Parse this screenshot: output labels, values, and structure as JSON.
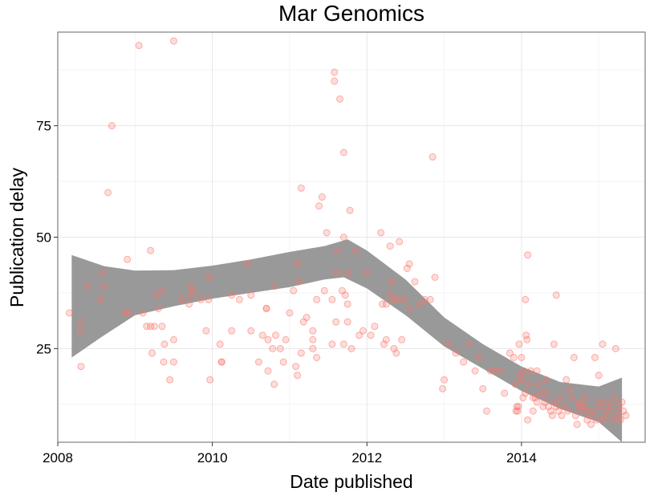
{
  "chart_data": {
    "type": "scatter",
    "title": "Mar Genomics",
    "xlabel": "Date published",
    "ylabel": "Publication delay",
    "xlim": [
      2008.0,
      2015.6
    ],
    "ylim": [
      4,
      96
    ],
    "x_ticks": [
      2008,
      2010,
      2012,
      2014
    ],
    "x_tick_labels": [
      "2008",
      "2010",
      "2012",
      "2014"
    ],
    "y_ticks": [
      25,
      50,
      75
    ],
    "y_tick_labels": [
      "25",
      "50",
      "75"
    ],
    "grid": true,
    "legend": "none",
    "point_color": "#f8766d",
    "band_color": "#999999",
    "band_upper": [
      [
        2008.18,
        46
      ],
      [
        2008.6,
        43.5
      ],
      [
        2009.0,
        42.5
      ],
      [
        2009.5,
        42.6
      ],
      [
        2010.0,
        43.6
      ],
      [
        2010.5,
        45
      ],
      [
        2011.0,
        46.7
      ],
      [
        2011.45,
        48
      ],
      [
        2011.75,
        49.5
      ],
      [
        2012.0,
        47
      ],
      [
        2012.5,
        40.5
      ],
      [
        2013.0,
        32
      ],
      [
        2013.5,
        26
      ],
      [
        2014.0,
        21
      ],
      [
        2014.5,
        17.5
      ],
      [
        2015.0,
        16.5
      ],
      [
        2015.3,
        18.5
      ]
    ],
    "band_lower": [
      [
        2008.18,
        23
      ],
      [
        2008.6,
        28
      ],
      [
        2009.0,
        32.5
      ],
      [
        2009.5,
        34.5
      ],
      [
        2010.0,
        36.2
      ],
      [
        2010.5,
        37.5
      ],
      [
        2011.0,
        38.8
      ],
      [
        2011.45,
        40.5
      ],
      [
        2011.7,
        41
      ],
      [
        2012.0,
        38.5
      ],
      [
        2012.5,
        32.5
      ],
      [
        2013.0,
        25.5
      ],
      [
        2013.5,
        20.5
      ],
      [
        2014.0,
        15.5
      ],
      [
        2014.5,
        11.5
      ],
      [
        2015.0,
        8.5
      ],
      [
        2015.3,
        4
      ]
    ],
    "points": [
      [
        2008.15,
        33
      ],
      [
        2008.3,
        31
      ],
      [
        2008.3,
        29
      ],
      [
        2008.3,
        21
      ],
      [
        2008.38,
        39
      ],
      [
        2008.55,
        36
      ],
      [
        2008.57,
        42
      ],
      [
        2008.6,
        39
      ],
      [
        2008.65,
        60
      ],
      [
        2008.7,
        75
      ],
      [
        2008.88,
        33
      ],
      [
        2008.9,
        45
      ],
      [
        2008.9,
        33
      ],
      [
        2009.05,
        93
      ],
      [
        2009.1,
        33
      ],
      [
        2009.15,
        30
      ],
      [
        2009.2,
        30
      ],
      [
        2009.2,
        47
      ],
      [
        2009.22,
        24
      ],
      [
        2009.25,
        30
      ],
      [
        2009.28,
        37
      ],
      [
        2009.3,
        34
      ],
      [
        2009.35,
        38
      ],
      [
        2009.35,
        30
      ],
      [
        2009.37,
        22
      ],
      [
        2009.38,
        26
      ],
      [
        2009.45,
        18
      ],
      [
        2009.5,
        22
      ],
      [
        2009.5,
        27
      ],
      [
        2009.5,
        94
      ],
      [
        2009.6,
        36
      ],
      [
        2009.7,
        35
      ],
      [
        2009.72,
        37
      ],
      [
        2009.72,
        39
      ],
      [
        2009.75,
        38
      ],
      [
        2009.85,
        36
      ],
      [
        2009.92,
        29
      ],
      [
        2009.95,
        36
      ],
      [
        2009.96,
        41
      ],
      [
        2009.97,
        18
      ],
      [
        2010.1,
        26
      ],
      [
        2010.12,
        22
      ],
      [
        2010.12,
        22
      ],
      [
        2010.25,
        37
      ],
      [
        2010.25,
        29
      ],
      [
        2010.35,
        36
      ],
      [
        2010.45,
        44
      ],
      [
        2010.5,
        37
      ],
      [
        2010.5,
        29
      ],
      [
        2010.6,
        22
      ],
      [
        2010.65,
        28
      ],
      [
        2010.7,
        34
      ],
      [
        2010.7,
        34
      ],
      [
        2010.72,
        27
      ],
      [
        2010.72,
        20
      ],
      [
        2010.78,
        25
      ],
      [
        2010.8,
        17
      ],
      [
        2010.8,
        39
      ],
      [
        2010.82,
        28
      ],
      [
        2010.88,
        25
      ],
      [
        2010.92,
        22
      ],
      [
        2010.95,
        27
      ],
      [
        2011.0,
        33
      ],
      [
        2011.05,
        38
      ],
      [
        2011.08,
        21
      ],
      [
        2011.1,
        19
      ],
      [
        2011.1,
        44
      ],
      [
        2011.12,
        40
      ],
      [
        2011.15,
        61
      ],
      [
        2011.15,
        24
      ],
      [
        2011.18,
        31
      ],
      [
        2011.22,
        32
      ],
      [
        2011.3,
        25
      ],
      [
        2011.3,
        29
      ],
      [
        2011.3,
        27
      ],
      [
        2011.35,
        36
      ],
      [
        2011.35,
        23
      ],
      [
        2011.38,
        57
      ],
      [
        2011.42,
        59
      ],
      [
        2011.45,
        38
      ],
      [
        2011.48,
        51
      ],
      [
        2011.55,
        36
      ],
      [
        2011.55,
        26
      ],
      [
        2011.58,
        87
      ],
      [
        2011.58,
        85
      ],
      [
        2011.6,
        42
      ],
      [
        2011.6,
        31
      ],
      [
        2011.62,
        47
      ],
      [
        2011.65,
        81
      ],
      [
        2011.68,
        38
      ],
      [
        2011.7,
        69
      ],
      [
        2011.7,
        50
      ],
      [
        2011.7,
        26
      ],
      [
        2011.72,
        37
      ],
      [
        2011.75,
        42
      ],
      [
        2011.75,
        31
      ],
      [
        2011.75,
        35
      ],
      [
        2011.78,
        56
      ],
      [
        2011.8,
        25
      ],
      [
        2011.85,
        47
      ],
      [
        2011.9,
        28
      ],
      [
        2011.95,
        29
      ],
      [
        2012.0,
        42
      ],
      [
        2012.05,
        28
      ],
      [
        2012.1,
        30
      ],
      [
        2012.18,
        51
      ],
      [
        2012.2,
        35
      ],
      [
        2012.22,
        26
      ],
      [
        2012.25,
        27
      ],
      [
        2012.25,
        35
      ],
      [
        2012.3,
        37
      ],
      [
        2012.3,
        48
      ],
      [
        2012.32,
        40
      ],
      [
        2012.35,
        25
      ],
      [
        2012.35,
        36
      ],
      [
        2012.38,
        24
      ],
      [
        2012.4,
        36
      ],
      [
        2012.42,
        49
      ],
      [
        2012.45,
        27
      ],
      [
        2012.48,
        36
      ],
      [
        2012.52,
        43
      ],
      [
        2012.55,
        34
      ],
      [
        2012.55,
        44
      ],
      [
        2012.62,
        40
      ],
      [
        2012.68,
        35
      ],
      [
        2012.75,
        36
      ],
      [
        2012.82,
        36
      ],
      [
        2012.85,
        68
      ],
      [
        2012.88,
        41
      ],
      [
        2012.98,
        16
      ],
      [
        2013.0,
        18
      ],
      [
        2013.05,
        26
      ],
      [
        2013.15,
        24
      ],
      [
        2013.25,
        22
      ],
      [
        2013.32,
        26
      ],
      [
        2013.4,
        20
      ],
      [
        2013.45,
        23
      ],
      [
        2013.5,
        16
      ],
      [
        2013.55,
        11
      ],
      [
        2013.6,
        20
      ],
      [
        2013.65,
        20
      ],
      [
        2013.72,
        20
      ],
      [
        2013.78,
        15
      ],
      [
        2013.85,
        24
      ],
      [
        2013.9,
        23
      ],
      [
        2013.92,
        17
      ],
      [
        2013.93,
        11
      ],
      [
        2013.94,
        12
      ],
      [
        2013.95,
        11
      ],
      [
        2013.96,
        12
      ],
      [
        2013.97,
        26
      ],
      [
        2013.98,
        19
      ],
      [
        2014.0,
        18
      ],
      [
        2014.0,
        23
      ],
      [
        2014.02,
        14
      ],
      [
        2014.03,
        20
      ],
      [
        2014.05,
        15
      ],
      [
        2014.05,
        36
      ],
      [
        2014.06,
        28
      ],
      [
        2014.07,
        27
      ],
      [
        2014.08,
        9
      ],
      [
        2014.08,
        46
      ],
      [
        2014.1,
        17
      ],
      [
        2014.12,
        20
      ],
      [
        2014.15,
        14
      ],
      [
        2014.15,
        11
      ],
      [
        2014.18,
        14
      ],
      [
        2014.2,
        13
      ],
      [
        2014.2,
        20
      ],
      [
        2014.22,
        17
      ],
      [
        2014.25,
        15
      ],
      [
        2014.28,
        12
      ],
      [
        2014.3,
        13
      ],
      [
        2014.32,
        18
      ],
      [
        2014.33,
        15
      ],
      [
        2014.35,
        12
      ],
      [
        2014.38,
        11
      ],
      [
        2014.4,
        10
      ],
      [
        2014.42,
        26
      ],
      [
        2014.42,
        13
      ],
      [
        2014.45,
        37
      ],
      [
        2014.45,
        12
      ],
      [
        2014.48,
        11
      ],
      [
        2014.5,
        14
      ],
      [
        2014.52,
        10
      ],
      [
        2014.55,
        12
      ],
      [
        2014.58,
        18
      ],
      [
        2014.6,
        11
      ],
      [
        2014.62,
        16
      ],
      [
        2014.65,
        14
      ],
      [
        2014.68,
        23
      ],
      [
        2014.7,
        10
      ],
      [
        2014.72,
        8
      ],
      [
        2014.74,
        12
      ],
      [
        2014.75,
        13
      ],
      [
        2014.77,
        12
      ],
      [
        2014.8,
        11
      ],
      [
        2014.82,
        14
      ],
      [
        2014.84,
        12
      ],
      [
        2014.85,
        9
      ],
      [
        2014.88,
        10
      ],
      [
        2014.9,
        8
      ],
      [
        2014.93,
        11
      ],
      [
        2014.95,
        23
      ],
      [
        2014.97,
        9
      ],
      [
        2015.0,
        13
      ],
      [
        2015.0,
        19
      ],
      [
        2015.02,
        12
      ],
      [
        2015.05,
        26
      ],
      [
        2015.05,
        9
      ],
      [
        2015.08,
        10
      ],
      [
        2015.1,
        13
      ],
      [
        2015.12,
        11
      ],
      [
        2015.15,
        12
      ],
      [
        2015.18,
        9
      ],
      [
        2015.2,
        14
      ],
      [
        2015.22,
        25
      ],
      [
        2015.24,
        10
      ],
      [
        2015.26,
        12
      ],
      [
        2015.28,
        9
      ],
      [
        2015.3,
        13
      ],
      [
        2015.32,
        11
      ],
      [
        2015.35,
        10
      ]
    ]
  }
}
